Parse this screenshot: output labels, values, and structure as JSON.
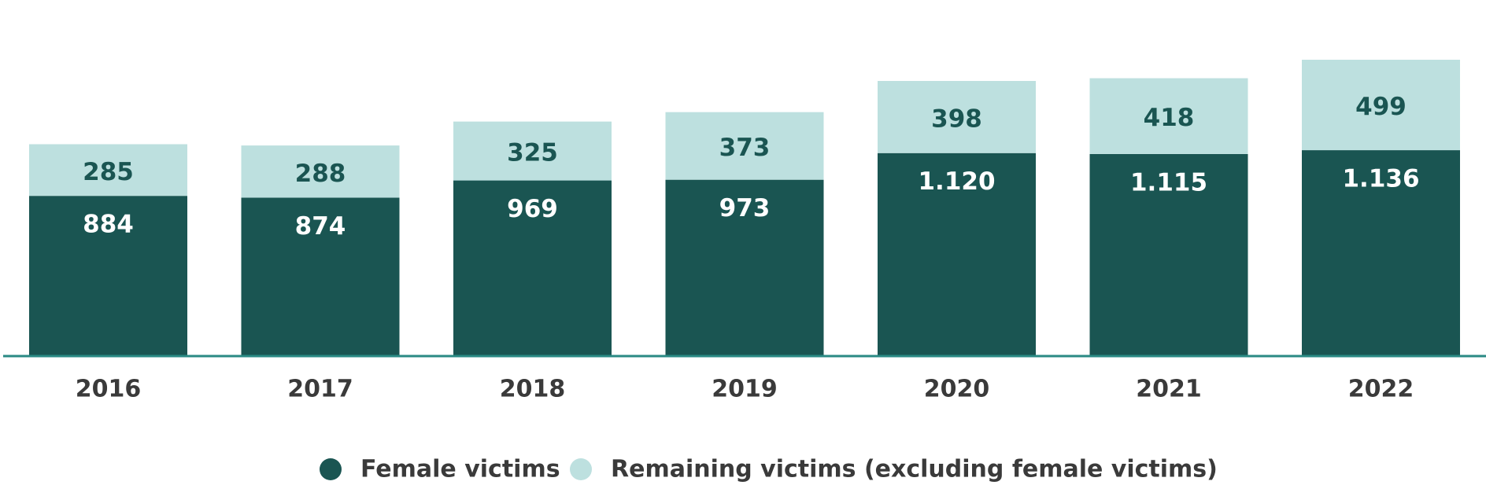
{
  "chart_data": {
    "type": "stacked_bar",
    "categories": [
      "2016",
      "2017",
      "2018",
      "2019",
      "2020",
      "2021",
      "2022"
    ],
    "series": [
      {
        "name": "Female victims",
        "color": "#1a5552",
        "label_color": "#ffffff",
        "values": [
          884,
          874,
          969,
          973,
          1120,
          1115,
          1136
        ],
        "value_labels": [
          "884",
          "874",
          "969",
          "973",
          "1.120",
          "1.115",
          "1.136"
        ]
      },
      {
        "name": "Remaining victims (excluding female victims)",
        "color": "#bde0df",
        "label_color": "#1a5552",
        "values": [
          285,
          288,
          325,
          373,
          398,
          418,
          499
        ]
      }
    ],
    "legend": "bottom"
  }
}
